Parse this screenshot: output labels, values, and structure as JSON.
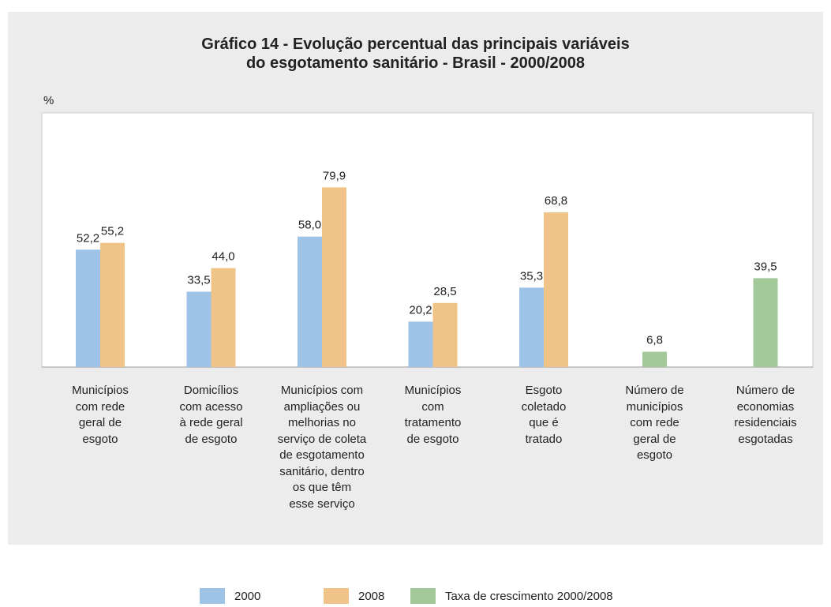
{
  "chart_data": {
    "type": "bar",
    "title": "Gráfico 14 - Evolução percentual das principais variáveis\ndo esgotamento sanitário - Brasil - 2000/2008",
    "y_label": "%",
    "categories": [
      "Municípios\ncom rede\ngeral de\nesgoto",
      "Domicílios\ncom acesso\nà rede geral\nde esgoto",
      "Municípios com\nampliações ou\nmelhorias no\nserviço de coleta\nde esgotamento\nsanitário, dentro\nos que têm\nesse serviço",
      "Municípios\ncom\ntratamento\nde esgoto",
      "Esgoto\ncoletado\nque é\ntratado",
      "Número de\nmunicípios\ncom rede\ngeral de\nesgoto",
      "Número de\neconomias\nresidenciais\nesgotadas"
    ],
    "series": [
      {
        "name": "2000",
        "color": "#9dc3e6",
        "values": [
          52.2,
          33.5,
          58.0,
          20.2,
          35.3,
          null,
          null
        ],
        "value_labels": [
          "52,2",
          "33,5",
          "58,0",
          "20,2",
          "35,3",
          null,
          null
        ]
      },
      {
        "name": "2008",
        "color": "#f0c389",
        "values": [
          55.2,
          44.0,
          79.9,
          28.5,
          68.8,
          null,
          null
        ],
        "value_labels": [
          "55,2",
          "44,0",
          "79,9",
          "28,5",
          "68,8",
          null,
          null
        ]
      },
      {
        "name": "Taxa de crescimento 2000/2008",
        "color": "#a3c99a",
        "values": [
          null,
          null,
          null,
          null,
          null,
          6.8,
          39.5
        ],
        "value_labels": [
          null,
          null,
          null,
          null,
          null,
          "6,8",
          "39,5"
        ]
      }
    ],
    "ylim": [
      0,
      113
    ]
  }
}
